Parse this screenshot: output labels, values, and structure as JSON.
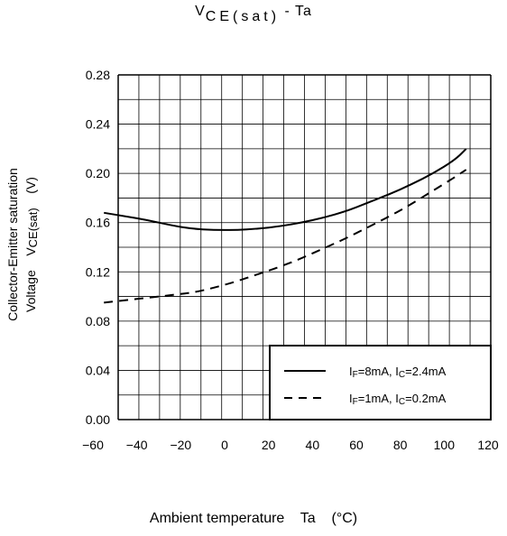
{
  "chart_data": {
    "type": "line",
    "title": {
      "main": "V",
      "sub": "CE(sat)",
      "rest": " - Ta"
    },
    "xlabel": "Ambient temperature    Ta    (°C)",
    "ylabel": {
      "line1": "Collector-Emitter saturation",
      "line2_prefix": "Voltage    V",
      "line2_sub": "CE(sat)",
      "line2_suffix": "    (V)"
    },
    "xlim": [
      -60,
      120
    ],
    "ylim": [
      0,
      0.28
    ],
    "xticks": [
      "-60",
      "-40",
      "-20",
      "0",
      "20",
      "40",
      "60",
      "80",
      "100",
      "120"
    ],
    "xtick_values": [
      -60,
      -40,
      -20,
      0,
      20,
      40,
      60,
      80,
      100,
      120
    ],
    "yticks": [
      "0.00",
      "0.04",
      "0.08",
      "0.12",
      "0.16",
      "0.20",
      "0.24",
      "0.28"
    ],
    "ytick_values": [
      0,
      0.04,
      0.08,
      0.12,
      0.16,
      0.2,
      0.24,
      0.28
    ],
    "grid": true,
    "legend_position": "bottom-right",
    "series": [
      {
        "legend": {
          "a": "I",
          "a_sub": "F",
          "b": "=8mA, I",
          "b_sub": "C",
          "c": "=2.4mA"
        },
        "style": "solid",
        "color": "#000000",
        "x": [
          -55,
          -45,
          -35,
          -25,
          -15,
          -5,
          5,
          15,
          25,
          35,
          45,
          55,
          65,
          75,
          85,
          95,
          105,
          110
        ],
        "y": [
          0.168,
          0.165,
          0.162,
          0.158,
          0.155,
          0.154,
          0.154,
          0.155,
          0.157,
          0.16,
          0.164,
          0.169,
          0.176,
          0.183,
          0.191,
          0.2,
          0.211,
          0.22
        ]
      },
      {
        "legend": {
          "a": "I",
          "a_sub": "F",
          "b": "=1mA, I",
          "b_sub": "C",
          "c": "=0.2mA"
        },
        "style": "dashed",
        "color": "#000000",
        "x": [
          -55,
          -45,
          -35,
          -25,
          -15,
          -5,
          5,
          15,
          25,
          35,
          45,
          55,
          65,
          75,
          85,
          95,
          105,
          110
        ],
        "y": [
          0.095,
          0.097,
          0.099,
          0.101,
          0.103,
          0.107,
          0.112,
          0.118,
          0.124,
          0.131,
          0.139,
          0.147,
          0.156,
          0.165,
          0.175,
          0.186,
          0.197,
          0.203
        ]
      }
    ]
  }
}
